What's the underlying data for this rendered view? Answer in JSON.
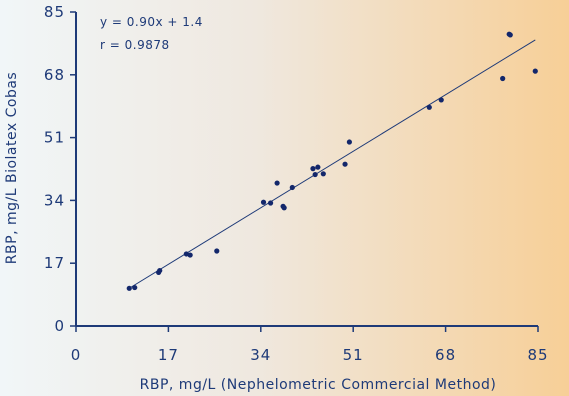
{
  "chart_data": {
    "type": "scatter",
    "title": "",
    "xlabel": "RBP, mg/L (Nephelometric Commercial Method)",
    "ylabel": "RBP, mg/L Biolatex Cobas",
    "xlim": [
      0,
      85
    ],
    "ylim": [
      0,
      85
    ],
    "xticks": [
      "0",
      "17",
      "34",
      "51",
      "68",
      "85"
    ],
    "yticks": [
      "0",
      "17",
      "34",
      "51",
      "68",
      "85"
    ],
    "grid": false,
    "equation": "y = 0.90x + 1.4",
    "r_value": "r = 0.9878",
    "regression": {
      "slope": 0.9,
      "intercept": 1.4,
      "x_range": [
        9.5,
        84.5
      ]
    },
    "points": [
      {
        "x": 9.8,
        "y": 10.2
      },
      {
        "x": 10.8,
        "y": 10.4
      },
      {
        "x": 15.2,
        "y": 14.5
      },
      {
        "x": 15.4,
        "y": 15.0
      },
      {
        "x": 20.3,
        "y": 19.5
      },
      {
        "x": 21.0,
        "y": 19.2
      },
      {
        "x": 25.9,
        "y": 20.3
      },
      {
        "x": 34.5,
        "y": 33.5
      },
      {
        "x": 35.8,
        "y": 33.3
      },
      {
        "x": 37.0,
        "y": 38.7
      },
      {
        "x": 38.1,
        "y": 32.4
      },
      {
        "x": 38.3,
        "y": 32.0
      },
      {
        "x": 39.8,
        "y": 37.5
      },
      {
        "x": 43.6,
        "y": 42.6
      },
      {
        "x": 44.0,
        "y": 41.0
      },
      {
        "x": 44.5,
        "y": 43.0
      },
      {
        "x": 45.5,
        "y": 41.2
      },
      {
        "x": 49.5,
        "y": 43.8
      },
      {
        "x": 50.3,
        "y": 49.8
      },
      {
        "x": 65.0,
        "y": 59.2
      },
      {
        "x": 67.2,
        "y": 61.2
      },
      {
        "x": 78.5,
        "y": 67.0
      },
      {
        "x": 79.7,
        "y": 79.0
      },
      {
        "x": 79.9,
        "y": 78.8
      },
      {
        "x": 84.5,
        "y": 69.0
      }
    ]
  },
  "colors": {
    "text": "#1e3a78",
    "axis": "#1e3a78",
    "points": "#13276b",
    "line": "#1e3a78"
  }
}
